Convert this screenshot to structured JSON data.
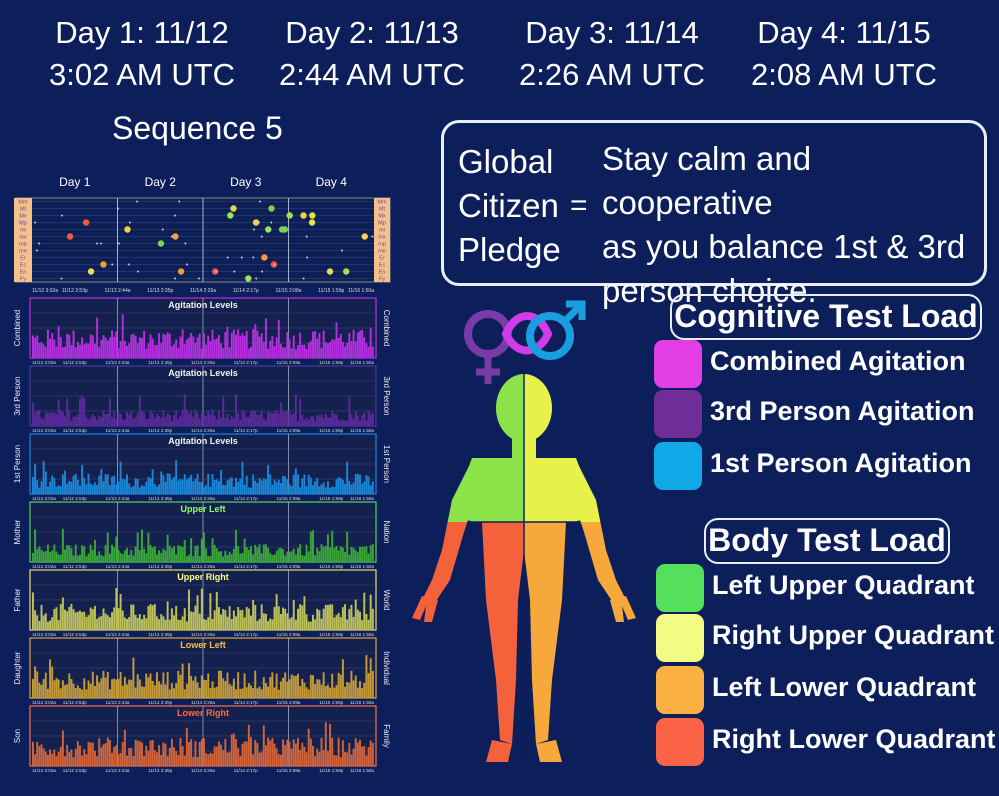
{
  "days": [
    {
      "label": "Day 1:  11/12",
      "time": "3:02 AM UTC"
    },
    {
      "label": "Day 2:  11/13",
      "time": "2:44 AM UTC"
    },
    {
      "label": "Day 3:  11/14",
      "time": "2:26 AM UTC"
    },
    {
      "label": "Day 4:  11/15",
      "time": "2:08 AM UTC"
    }
  ],
  "sequence_title": "Sequence 5",
  "chart": {
    "day_labels": [
      "Day 1",
      "Day 2",
      "Day 3",
      "Day 4"
    ],
    "timestamps": [
      "11/12 3:02a",
      "11/12 2:53p",
      "11/13 2:44a",
      "11/13 2:35p",
      "11/14 2:26a",
      "11/14 2:17p",
      "11/15 2:08a",
      "11/15 1:59p",
      "11/16 1:50a"
    ],
    "top_rows": [
      "Mm",
      "Mt",
      "Mx",
      "Mp",
      "mt",
      "mx",
      "mp",
      "me",
      "Er",
      "Ec",
      "En",
      "Fy"
    ],
    "panels": [
      {
        "title": "Agitation Levels",
        "left": "Combined",
        "right": "Combined",
        "color": "#b52fe0",
        "border": "#b52fe0",
        "title_color": "#f2f2f2",
        "level": 0.42
      },
      {
        "title": "Agitation Levels",
        "left": "3rd Person",
        "right": "3rd Person",
        "color": "#5b2a9a",
        "border": "#4a3a99",
        "title_color": "#f2f2f2",
        "level": 0.24
      },
      {
        "title": "Agitation Levels",
        "left": "1st Person",
        "right": "1st Person",
        "color": "#1a86d6",
        "border": "#1a86d6",
        "title_color": "#f2f2f2",
        "level": 0.3
      },
      {
        "title": "Upper Left",
        "left": "Mother",
        "right": "Nation",
        "color": "#3aa63a",
        "border": "#5cd05c",
        "title_color": "#8cff6a",
        "level": 0.26
      },
      {
        "title": "Upper Right",
        "left": "Father",
        "right": "World",
        "color": "#bfc25a",
        "border": "#e8e06a",
        "title_color": "#ffff80",
        "level": 0.38
      },
      {
        "title": "Lower Left",
        "left": "Daughter",
        "right": "Individual",
        "color": "#c59a38",
        "border": "#e0a53a",
        "title_color": "#ffbf3a",
        "level": 0.4
      },
      {
        "title": "Lower Right",
        "left": "Son",
        "right": "Family",
        "color": "#d1643a",
        "border": "#ff6f3f",
        "title_color": "#ff6a3a",
        "level": 0.42
      }
    ]
  },
  "pledge": {
    "words": [
      "Global",
      "Citizen",
      "Pledge"
    ],
    "equals": "=",
    "text_lines": [
      "Stay calm and cooperative",
      "as you balance 1st & 3rd",
      "person choice."
    ]
  },
  "cognitive": {
    "title": "Cognitive Test Load",
    "items": [
      {
        "label": "Combined Agitation",
        "color": "#e33ee6"
      },
      {
        "label": "3rd Person Agitation",
        "color": "#6f2e97"
      },
      {
        "label": "1st Person Agitation",
        "color": "#11a8e8"
      }
    ]
  },
  "body": {
    "title": "Body Test Load",
    "items": [
      {
        "label": "Left Upper Quadrant",
        "color": "#55e05b"
      },
      {
        "label": "Right Upper Quadrant",
        "color": "#f4fb84"
      },
      {
        "label": "Left Lower Quadrant",
        "color": "#fbb141"
      },
      {
        "label": "Right Lower Quadrant",
        "color": "#fb6347"
      }
    ]
  },
  "figure_colors": {
    "upper_left": "#8ce34a",
    "upper_right": "#e8f04a",
    "lower_left": "#f4623c",
    "lower_right": "#f6a93a",
    "symbol_purple": "#7a3aa8",
    "symbol_magenta": "#d23ce6",
    "symbol_blue": "#1a9ee0"
  }
}
